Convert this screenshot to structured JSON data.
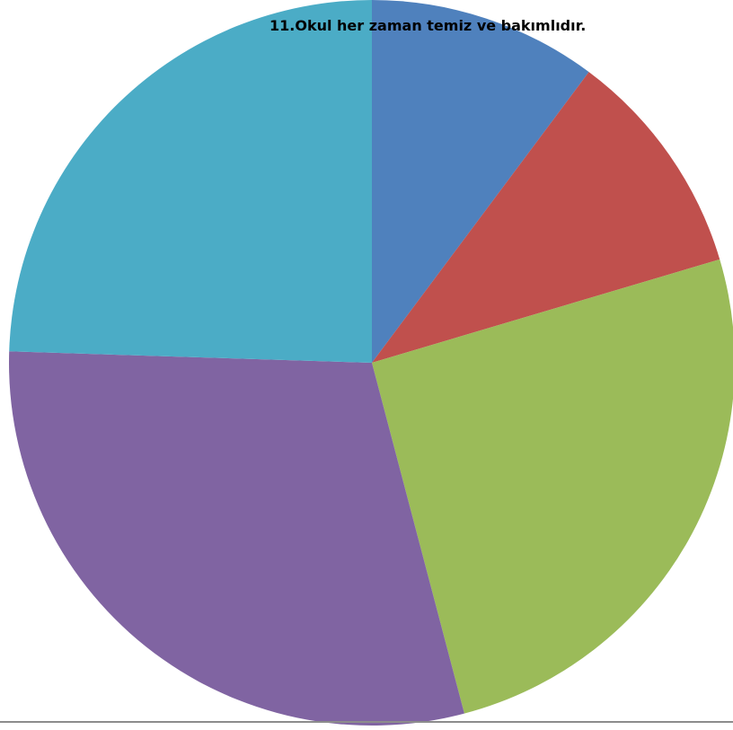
{
  "chart_data": {
    "type": "pie",
    "title": "11.Okul her zaman temiz ve bakımlıdır.",
    "values": [
      10.2,
      10.2,
      25.5,
      29.6,
      24.5
    ],
    "colors": [
      "#4f81bd",
      "#c0504d",
      "#9bbb59",
      "#8064a2",
      "#4bacc6"
    ],
    "start_angle_deg": 0,
    "direction": "clockwise",
    "legend": "none"
  }
}
